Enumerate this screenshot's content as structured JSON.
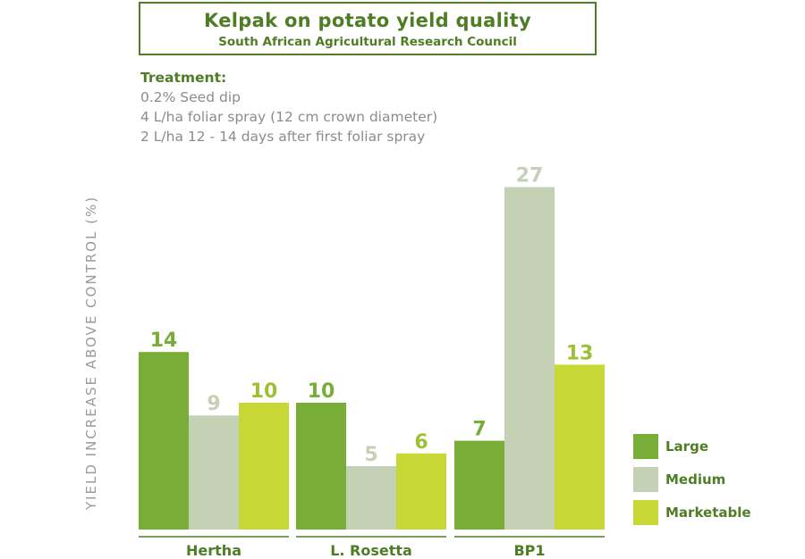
{
  "header": {
    "title": "Kelpak on potato yield quality",
    "subtitle": "South African Agricultural Research Council"
  },
  "treatment": {
    "heading": "Treatment:",
    "lines": [
      "0.2% Seed dip",
      "4 L/ha foliar spray (12 cm crown diameter)",
      "2 L/ha 12 - 14 days after first foliar spray"
    ]
  },
  "chart_data": {
    "type": "bar",
    "title": "Kelpak on potato yield quality",
    "ylabel": "YIELD INCREASE ABOVE CONTROL (%)",
    "categories": [
      "Hertha",
      "L. Rosetta",
      "BP1"
    ],
    "series": [
      {
        "name": "Large",
        "values": [
          14,
          10,
          7
        ],
        "color": "#78ad38",
        "label_color": "#78ad38"
      },
      {
        "name": "Medium",
        "values": [
          9,
          5,
          27
        ],
        "color": "#c4d1b5",
        "label_color": "#c4d1b5"
      },
      {
        "name": "Marketable",
        "values": [
          10,
          6,
          13
        ],
        "color": "#c7d736",
        "label_color": "#9fbf35"
      }
    ],
    "ylim": [
      0,
      27
    ],
    "grid": false,
    "legend_position": "bottom-right"
  }
}
